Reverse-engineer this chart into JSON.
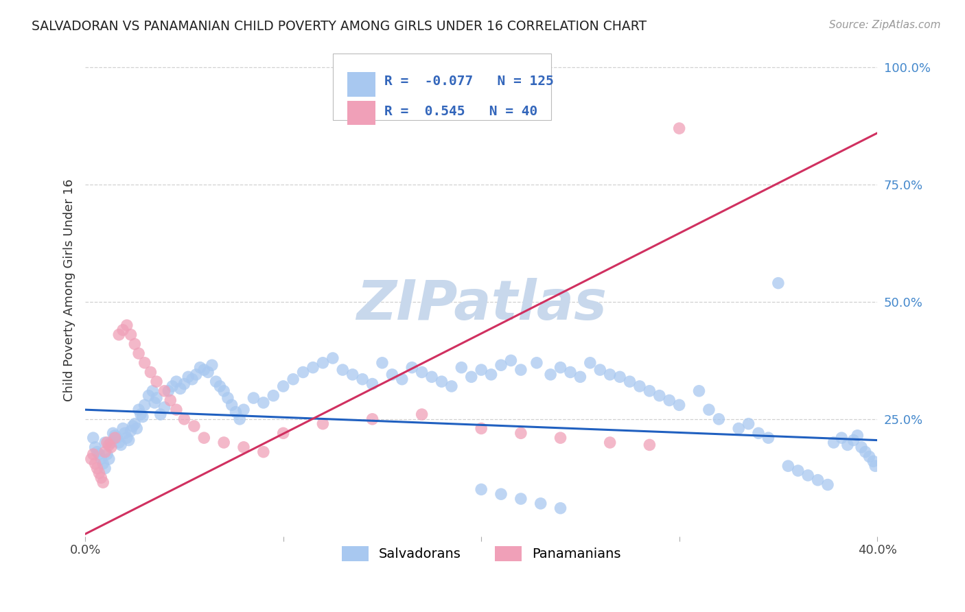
{
  "title": "SALVADORAN VS PANAMANIAN CHILD POVERTY AMONG GIRLS UNDER 16 CORRELATION CHART",
  "source": "Source: ZipAtlas.com",
  "ylabel": "Child Poverty Among Girls Under 16",
  "xlim": [
    0.0,
    0.4
  ],
  "ylim": [
    0.0,
    1.05
  ],
  "xticks": [
    0.0,
    0.1,
    0.2,
    0.3,
    0.4
  ],
  "yticks": [
    0.25,
    0.5,
    0.75,
    1.0
  ],
  "ytick_labels": [
    "25.0%",
    "50.0%",
    "75.0%",
    "100.0%"
  ],
  "xtick_labels": [
    "0.0%",
    "",
    "",
    "",
    "40.0%"
  ],
  "blue_R": -0.077,
  "blue_N": 125,
  "pink_R": 0.545,
  "pink_N": 40,
  "blue_line_x": [
    0.0,
    0.4
  ],
  "blue_line_y": [
    0.27,
    0.205
  ],
  "pink_line_x": [
    0.0,
    0.4
  ],
  "pink_line_y": [
    0.005,
    0.86
  ],
  "blue_color": "#A8C8F0",
  "pink_color": "#F0A0B8",
  "blue_line_color": "#2060C0",
  "pink_line_color": "#D03060",
  "watermark_text": "ZIPatlas",
  "watermark_color": "#C8D8EC",
  "grid_color": "#CCCCCC",
  "blue_x": [
    0.004,
    0.005,
    0.006,
    0.007,
    0.008,
    0.009,
    0.01,
    0.01,
    0.011,
    0.012,
    0.013,
    0.014,
    0.015,
    0.016,
    0.017,
    0.018,
    0.019,
    0.02,
    0.021,
    0.022,
    0.023,
    0.024,
    0.025,
    0.026,
    0.027,
    0.028,
    0.029,
    0.03,
    0.032,
    0.034,
    0.035,
    0.036,
    0.038,
    0.04,
    0.042,
    0.044,
    0.046,
    0.048,
    0.05,
    0.052,
    0.054,
    0.056,
    0.058,
    0.06,
    0.062,
    0.064,
    0.066,
    0.068,
    0.07,
    0.072,
    0.074,
    0.076,
    0.078,
    0.08,
    0.085,
    0.09,
    0.095,
    0.1,
    0.105,
    0.11,
    0.115,
    0.12,
    0.125,
    0.13,
    0.135,
    0.14,
    0.145,
    0.15,
    0.155,
    0.16,
    0.165,
    0.17,
    0.175,
    0.18,
    0.185,
    0.19,
    0.195,
    0.2,
    0.205,
    0.21,
    0.215,
    0.22,
    0.228,
    0.235,
    0.24,
    0.245,
    0.25,
    0.255,
    0.26,
    0.265,
    0.27,
    0.275,
    0.28,
    0.285,
    0.29,
    0.295,
    0.3,
    0.31,
    0.315,
    0.32,
    0.33,
    0.335,
    0.34,
    0.345,
    0.35,
    0.355,
    0.36,
    0.365,
    0.37,
    0.375,
    0.378,
    0.382,
    0.385,
    0.388,
    0.39,
    0.392,
    0.394,
    0.396,
    0.398,
    0.399,
    0.2,
    0.21,
    0.22,
    0.23,
    0.24
  ],
  "blue_y": [
    0.21,
    0.19,
    0.18,
    0.175,
    0.165,
    0.155,
    0.145,
    0.2,
    0.175,
    0.165,
    0.2,
    0.22,
    0.215,
    0.21,
    0.2,
    0.195,
    0.23,
    0.22,
    0.21,
    0.205,
    0.225,
    0.235,
    0.24,
    0.23,
    0.27,
    0.26,
    0.255,
    0.28,
    0.3,
    0.31,
    0.285,
    0.295,
    0.26,
    0.275,
    0.31,
    0.32,
    0.33,
    0.315,
    0.325,
    0.34,
    0.335,
    0.345,
    0.36,
    0.355,
    0.35,
    0.365,
    0.33,
    0.32,
    0.31,
    0.295,
    0.28,
    0.265,
    0.25,
    0.27,
    0.295,
    0.285,
    0.3,
    0.32,
    0.335,
    0.35,
    0.36,
    0.37,
    0.38,
    0.355,
    0.345,
    0.335,
    0.325,
    0.37,
    0.345,
    0.335,
    0.36,
    0.35,
    0.34,
    0.33,
    0.32,
    0.36,
    0.34,
    0.355,
    0.345,
    0.365,
    0.375,
    0.355,
    0.37,
    0.345,
    0.36,
    0.35,
    0.34,
    0.37,
    0.355,
    0.345,
    0.34,
    0.33,
    0.32,
    0.31,
    0.3,
    0.29,
    0.28,
    0.31,
    0.27,
    0.25,
    0.23,
    0.24,
    0.22,
    0.21,
    0.54,
    0.15,
    0.14,
    0.13,
    0.12,
    0.11,
    0.2,
    0.21,
    0.195,
    0.205,
    0.215,
    0.19,
    0.18,
    0.17,
    0.16,
    0.15,
    0.1,
    0.09,
    0.08,
    0.07,
    0.06
  ],
  "pink_x": [
    0.003,
    0.004,
    0.005,
    0.006,
    0.007,
    0.008,
    0.009,
    0.01,
    0.011,
    0.012,
    0.013,
    0.015,
    0.017,
    0.019,
    0.021,
    0.023,
    0.025,
    0.027,
    0.03,
    0.033,
    0.036,
    0.04,
    0.043,
    0.046,
    0.05,
    0.055,
    0.06,
    0.07,
    0.08,
    0.09,
    0.1,
    0.12,
    0.145,
    0.17,
    0.2,
    0.22,
    0.24,
    0.265,
    0.285,
    0.3
  ],
  "pink_y": [
    0.165,
    0.175,
    0.155,
    0.145,
    0.135,
    0.125,
    0.115,
    0.18,
    0.2,
    0.195,
    0.19,
    0.21,
    0.43,
    0.44,
    0.45,
    0.43,
    0.41,
    0.39,
    0.37,
    0.35,
    0.33,
    0.31,
    0.29,
    0.27,
    0.25,
    0.235,
    0.21,
    0.2,
    0.19,
    0.18,
    0.22,
    0.24,
    0.25,
    0.26,
    0.23,
    0.22,
    0.21,
    0.2,
    0.195,
    0.87
  ]
}
